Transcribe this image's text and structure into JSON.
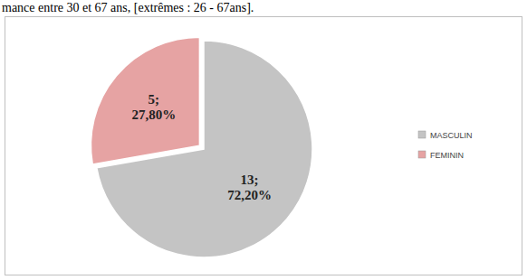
{
  "chart_data": {
    "type": "pie",
    "annotations": [
      "mance entre 30 et 67 ans, [extrêmes : 26 - 67ans]."
    ],
    "categories": [
      "MASCULIN",
      "FEMININ"
    ],
    "values": [
      13,
      5
    ],
    "value_labels": [
      "13;\n72,20%",
      "5;\n27,80%"
    ],
    "colors": [
      "#c4c4c4",
      "#e6a3a3"
    ],
    "data_labels": true,
    "legend": "right"
  }
}
